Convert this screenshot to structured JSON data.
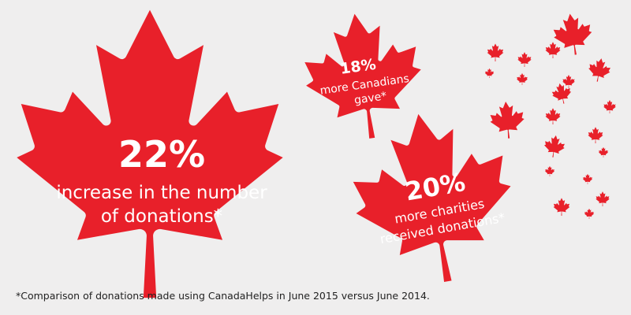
{
  "stats": [
    {
      "figure": "22%",
      "lines": [
        "increase in the number",
        "of donations*"
      ]
    },
    {
      "figure": "18%",
      "lines": [
        "more Canadians",
        "gave*"
      ]
    },
    {
      "figure": "20%",
      "lines": [
        "more charities",
        "received donations*"
      ]
    }
  ],
  "footnote": "*Comparison of donations made using CanadaHelps in June 2015 versus June 2014."
}
